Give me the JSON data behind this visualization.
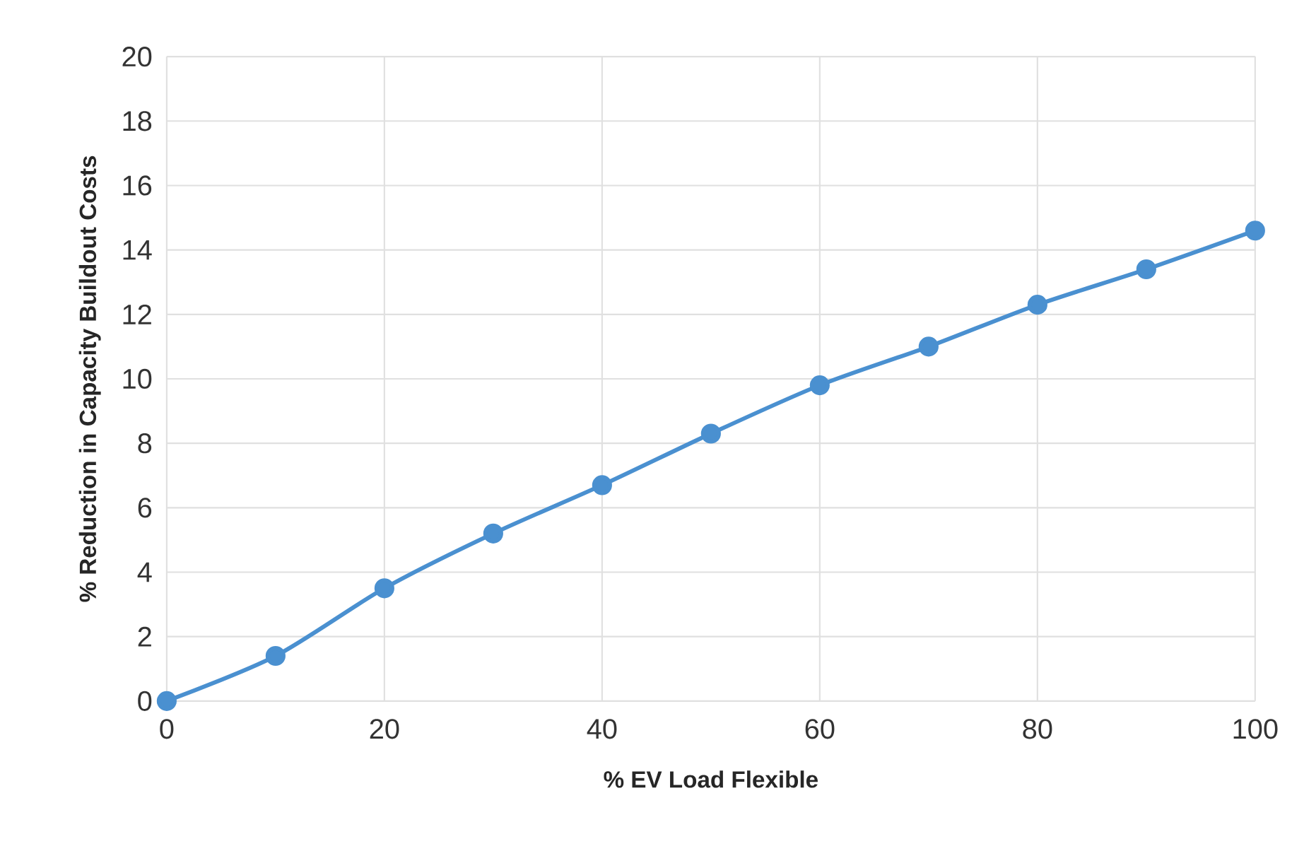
{
  "chart_data": {
    "type": "line",
    "xlabel": "% EV Load Flexible",
    "ylabel": "% Reduction in Capacity Buildout Costs",
    "x": [
      0,
      10,
      20,
      30,
      40,
      50,
      60,
      70,
      80,
      90,
      100
    ],
    "values": [
      0,
      1.4,
      3.5,
      5.2,
      6.7,
      8.3,
      9.8,
      11.0,
      12.3,
      13.4,
      14.6
    ],
    "color": "#4a90d0",
    "xlim": [
      0,
      100
    ],
    "ylim": [
      0,
      20
    ],
    "xticks": [
      0,
      20,
      40,
      60,
      80,
      100
    ],
    "yticks": [
      0,
      2,
      4,
      6,
      8,
      10,
      12,
      14,
      16,
      18,
      20
    ],
    "grid": true,
    "marker": "circle",
    "line_style": "solid"
  }
}
